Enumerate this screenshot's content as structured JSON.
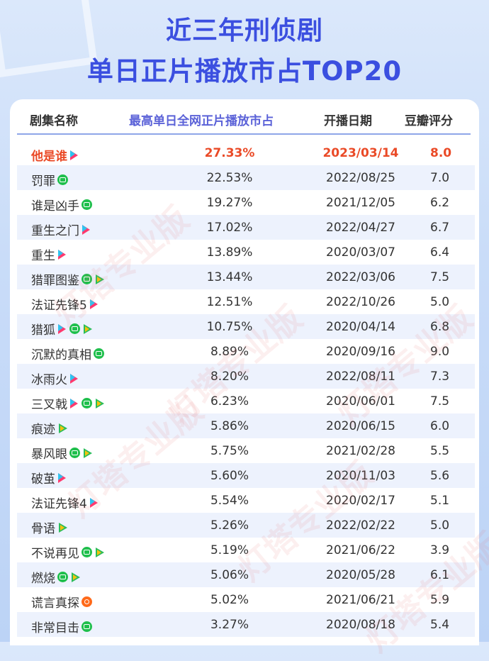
{
  "title_line1": "近三年刑侦剧",
  "title_line2": "单日正片播放市占TOP20",
  "header": {
    "name": "剧集名称",
    "share": "最高单日全网正片播放市占",
    "date": "开播日期",
    "score": "豆瓣评分"
  },
  "watermark": "灯塔专业版",
  "colors": {
    "title": "#3b4fe0",
    "highlight": "#ea4a27",
    "share_header": "#5b62d8"
  },
  "rows": [
    {
      "name": "他是谁",
      "share": "27.33%",
      "date": "2023/03/14",
      "score": "8.0",
      "platforms": [
        "mango-icon"
      ]
    },
    {
      "name": "罚罪",
      "share": "22.53%",
      "date": "2022/08/25",
      "score": "7.0",
      "platforms": [
        "iqiyi-icon"
      ]
    },
    {
      "name": "谁是凶手",
      "share": "19.27%",
      "date": "2021/12/05",
      "score": "6.2",
      "platforms": [
        "iqiyi-icon"
      ]
    },
    {
      "name": "重生之门",
      "share": "17.02%",
      "date": "2022/04/27",
      "score": "6.7",
      "platforms": [
        "mango-icon"
      ]
    },
    {
      "name": "重生",
      "share": "13.89%",
      "date": "2020/03/07",
      "score": "6.4",
      "platforms": [
        "mango-icon"
      ]
    },
    {
      "name": "猎罪图鉴",
      "share": "13.44%",
      "date": "2022/03/06",
      "score": "7.5",
      "platforms": [
        "iqiyi-icon",
        "tencent-icon"
      ]
    },
    {
      "name": "法证先锋5",
      "share": "12.51%",
      "date": "2022/10/26",
      "score": "5.0",
      "platforms": [
        "mango-icon"
      ]
    },
    {
      "name": "猎狐",
      "share": "10.75%",
      "date": "2020/04/14",
      "score": "6.8",
      "platforms": [
        "mango-icon",
        "iqiyi-icon",
        "tencent-icon"
      ]
    },
    {
      "name": "沉默的真相",
      "share": "8.89%",
      "date": "2020/09/16",
      "score": "9.0",
      "platforms": [
        "iqiyi-icon"
      ]
    },
    {
      "name": "冰雨火",
      "share": "8.20%",
      "date": "2022/08/11",
      "score": "7.3",
      "platforms": [
        "mango-icon"
      ]
    },
    {
      "name": "三叉戟",
      "share": "6.23%",
      "date": "2020/06/01",
      "score": "7.5",
      "platforms": [
        "mango-icon",
        "iqiyi-icon",
        "tencent-icon"
      ]
    },
    {
      "name": "痕迹",
      "share": "5.86%",
      "date": "2020/06/15",
      "score": "6.0",
      "platforms": [
        "tencent-icon"
      ]
    },
    {
      "name": "暴风眼",
      "share": "5.75%",
      "date": "2021/02/28",
      "score": "5.5",
      "platforms": [
        "iqiyi-icon",
        "tencent-icon"
      ]
    },
    {
      "name": "破茧",
      "share": "5.60%",
      "date": "2020/11/03",
      "score": "5.6",
      "platforms": [
        "mango-icon"
      ]
    },
    {
      "name": "法证先锋4",
      "share": "5.54%",
      "date": "2020/02/17",
      "score": "5.1",
      "platforms": [
        "mango-icon"
      ]
    },
    {
      "name": "骨语",
      "share": "5.26%",
      "date": "2022/02/22",
      "score": "5.0",
      "platforms": [
        "tencent-icon"
      ]
    },
    {
      "name": "不说再见",
      "share": "5.19%",
      "date": "2021/06/22",
      "score": "3.9",
      "platforms": [
        "iqiyi-icon",
        "tencent-icon"
      ]
    },
    {
      "name": "燃烧",
      "share": "5.06%",
      "date": "2020/05/28",
      "score": "6.1",
      "platforms": [
        "iqiyi-icon",
        "tencent-icon"
      ]
    },
    {
      "name": "谎言真探",
      "share": "5.02%",
      "date": "2021/06/21",
      "score": "5.9",
      "platforms": [
        "youku-icon"
      ]
    },
    {
      "name": "非常目击",
      "share": "3.27%",
      "date": "2020/08/18",
      "score": "5.4",
      "platforms": [
        "iqiyi-icon"
      ]
    }
  ]
}
